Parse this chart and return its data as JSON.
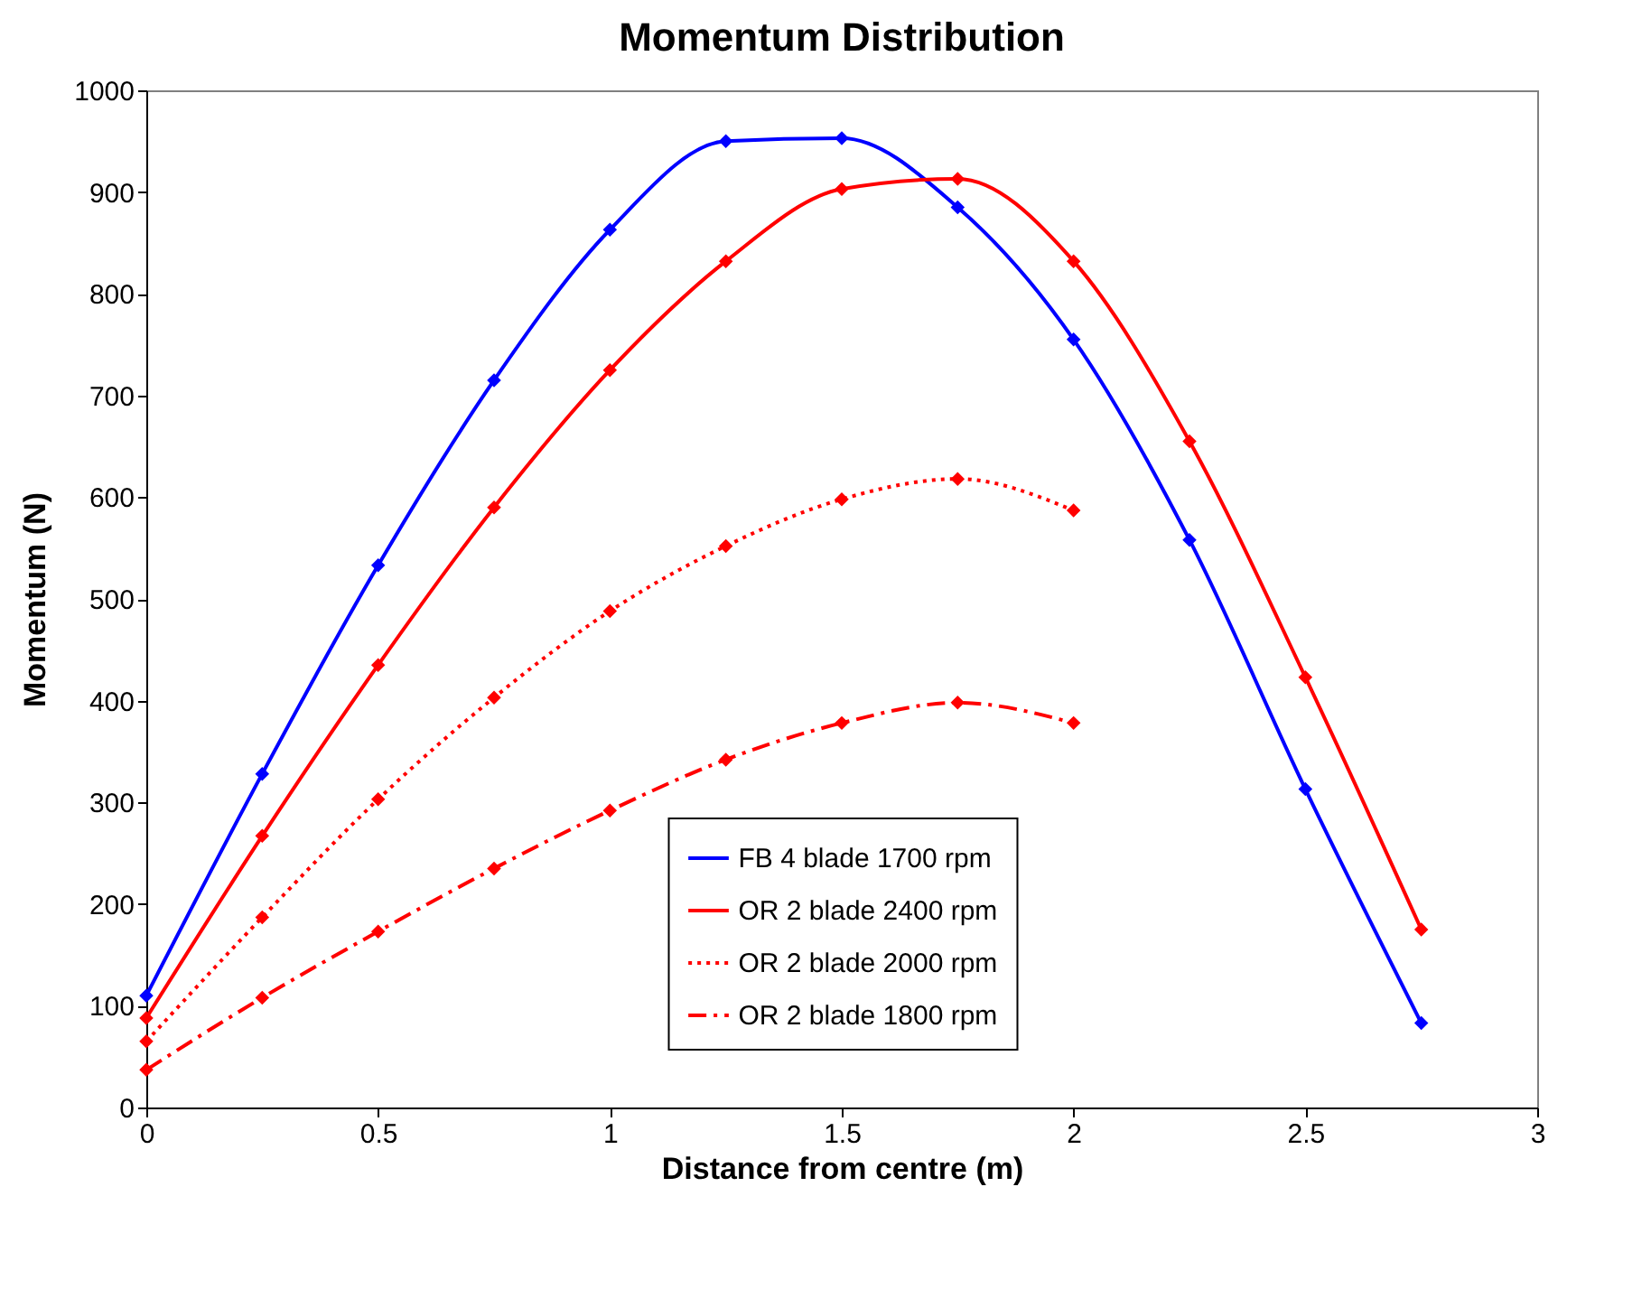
{
  "chart_data": {
    "type": "line",
    "title": "Momentum Distribution",
    "xlabel": "Distance from centre (m)",
    "ylabel": "Momentum (N)",
    "xlim": [
      0,
      3
    ],
    "xticks": [
      0,
      0.5,
      1,
      1.5,
      2,
      2.5,
      3
    ],
    "ylim": [
      0,
      1000
    ],
    "yticks": [
      0,
      100,
      200,
      300,
      400,
      500,
      600,
      700,
      800,
      900,
      1000
    ],
    "grid": false,
    "legend": "bottom",
    "marker": "diamond",
    "x": [
      0,
      0.25,
      0.5,
      0.75,
      1,
      1.25,
      1.5,
      1.75,
      2,
      2.25,
      2.5,
      2.75
    ],
    "series": [
      {
        "name": "FB 4 blade 1700 rpm",
        "color": "#0000ff",
        "line_style": "solid",
        "values": [
          110,
          328,
          533,
          715,
          863,
          950,
          953,
          885,
          755,
          558,
          313,
          83
        ]
      },
      {
        "name": "OR 2 blade 2400 rpm",
        "color": "#ff0000",
        "line_style": "solid",
        "values": [
          88,
          267,
          435,
          590,
          725,
          832,
          903,
          913,
          832,
          655,
          423,
          175
        ]
      },
      {
        "name": "OR 2 blade 2000 rpm",
        "color": "#ff0000",
        "line_style": "dotted",
        "values": [
          65,
          187,
          303,
          403,
          488,
          552,
          598,
          618,
          587,
          null,
          null,
          null
        ]
      },
      {
        "name": "OR 2 blade 1800 rpm",
        "color": "#ff0000",
        "line_style": "dashdot",
        "values": [
          37,
          108,
          173,
          235,
          292,
          342,
          378,
          398,
          378,
          null,
          null,
          null
        ]
      }
    ]
  }
}
